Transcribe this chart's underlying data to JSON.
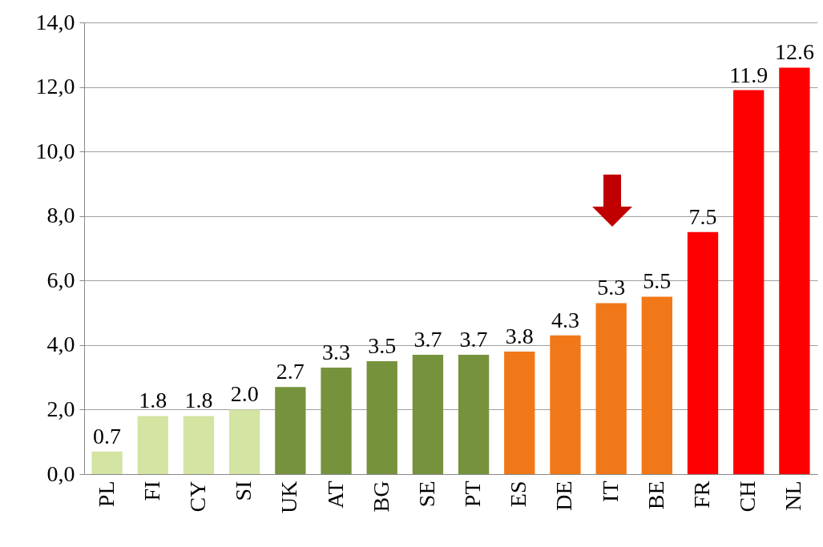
{
  "chart_data": {
    "type": "bar",
    "categories": [
      "PL",
      "FI",
      "CY",
      "SI",
      "UK",
      "AT",
      "BG",
      "SE",
      "PT",
      "ES",
      "DE",
      "IT",
      "BE",
      "FR",
      "CH",
      "NL"
    ],
    "values": [
      0.7,
      1.8,
      1.8,
      2.0,
      2.7,
      3.3,
      3.5,
      3.7,
      3.7,
      3.8,
      4.3,
      5.3,
      5.5,
      7.5,
      11.9,
      12.6
    ],
    "value_labels": [
      "0.7",
      "1.8",
      "1.8",
      "2.0",
      "2.7",
      "3.3",
      "3.5",
      "3.7",
      "3.7",
      "3.8",
      "4.3",
      "5.3",
      "5.5",
      "7.5",
      "11.9",
      "12.6"
    ],
    "colors": [
      "#d3e4a3",
      "#d3e4a3",
      "#d3e4a3",
      "#d3e4a3",
      "#76923c",
      "#76923c",
      "#76923c",
      "#76923c",
      "#76923c",
      "#f07818",
      "#f07818",
      "#f07818",
      "#f07818",
      "#ff0000",
      "#ff0000",
      "#ff0000"
    ],
    "ylim": [
      0,
      14
    ],
    "yticks": [
      {
        "value": 0,
        "label": "0,0"
      },
      {
        "value": 2,
        "label": "2,0"
      },
      {
        "value": 4,
        "label": "4,0"
      },
      {
        "value": 6,
        "label": "6,0"
      },
      {
        "value": 8,
        "label": "8,0"
      },
      {
        "value": 10,
        "label": "10,0"
      },
      {
        "value": 12,
        "label": "12,0"
      },
      {
        "value": 14,
        "label": "14,0"
      }
    ],
    "grid": "y"
  }
}
